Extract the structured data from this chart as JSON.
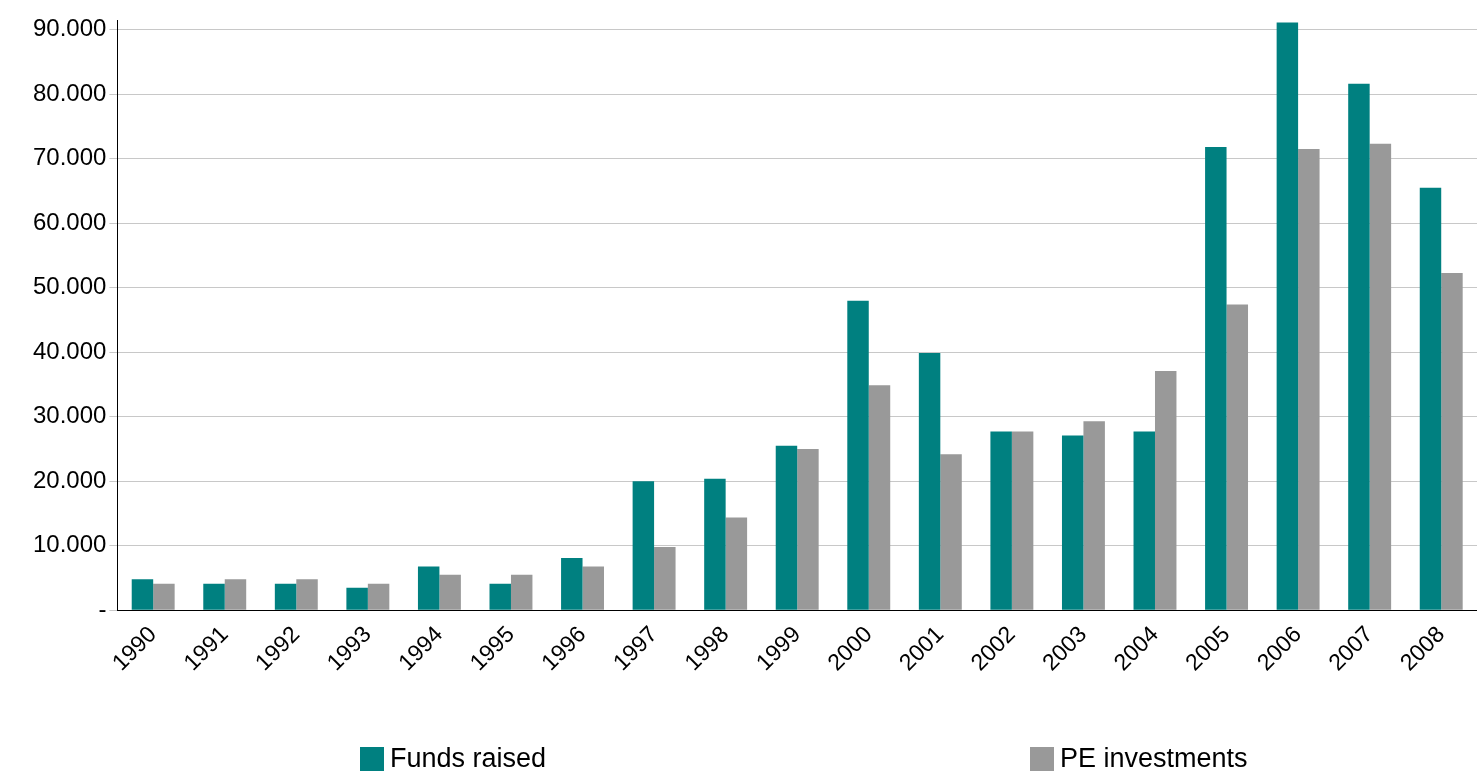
{
  "chart_data": {
    "type": "bar",
    "categories": [
      "1990",
      "1991",
      "1992",
      "1993",
      "1994",
      "1995",
      "1996",
      "1997",
      "1998",
      "1999",
      "2000",
      "2001",
      "2002",
      "2003",
      "2004",
      "2005",
      "2006",
      "2007",
      "2008"
    ],
    "series": [
      {
        "name": "Funds raised",
        "color": "#008080",
        "values": [
          4800,
          4100,
          4100,
          3500,
          6800,
          4100,
          8100,
          20000,
          20400,
          25500,
          48000,
          39900,
          27700,
          27100,
          27700,
          71800,
          91100,
          81600,
          65500
        ]
      },
      {
        "name": "PE investments",
        "color": "#999999",
        "values": [
          4100,
          4800,
          4800,
          4100,
          5500,
          5500,
          6800,
          9800,
          14400,
          25000,
          34900,
          24200,
          27700,
          29300,
          37100,
          47400,
          71500,
          72300,
          52300
        ]
      }
    ],
    "ylim": [
      0,
      91500
    ],
    "yticks": [
      {
        "value": 0,
        "label": "-"
      },
      {
        "value": 10000,
        "label": "10.000"
      },
      {
        "value": 20000,
        "label": "20.000"
      },
      {
        "value": 30000,
        "label": "30.000"
      },
      {
        "value": 40000,
        "label": "40.000"
      },
      {
        "value": 50000,
        "label": "50.000"
      },
      {
        "value": 60000,
        "label": "60.000"
      },
      {
        "value": 70000,
        "label": "70.000"
      },
      {
        "value": 80000,
        "label": "80.000"
      },
      {
        "value": 90000,
        "label": "90.000"
      }
    ],
    "grid": "y",
    "legend": "bottom"
  }
}
